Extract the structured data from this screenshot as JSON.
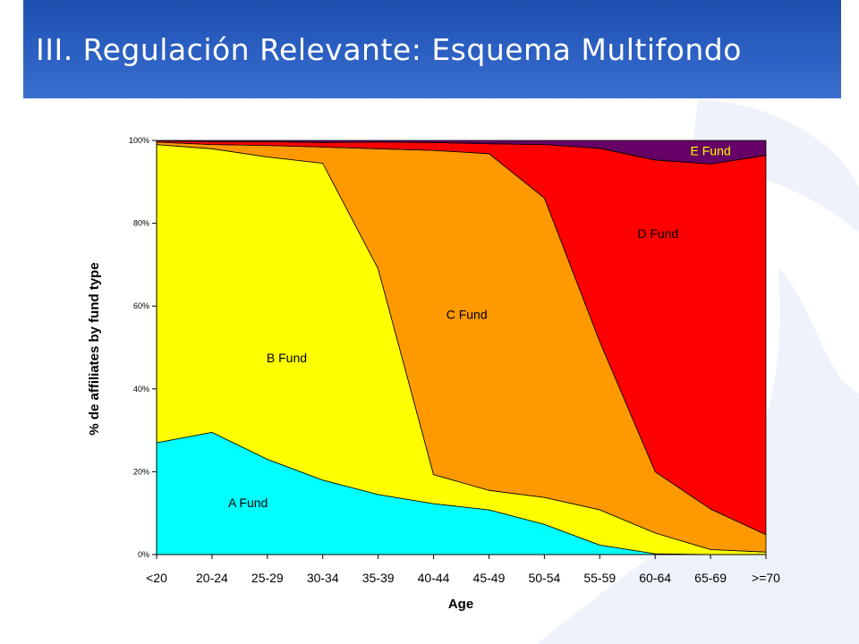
{
  "slide": {
    "title": "III. Regulación Relevante: Esquema Multifondo"
  },
  "colors": {
    "title_bar": "#2d62c4",
    "title_text": "#ffffff",
    "decoration": "#eef3fb"
  },
  "chart_data": {
    "type": "area",
    "stacked": true,
    "percent": true,
    "xlabel": "Age",
    "ylabel": "% de affiliates by fund type",
    "categories": [
      "<20",
      "20-24",
      "25-29",
      "30-34",
      "35-39",
      "40-44",
      "45-49",
      "50-54",
      "55-59",
      "60-64",
      "65-69",
      ">=70"
    ],
    "y_ticks": [
      "0%",
      "20%",
      "40%",
      "60%",
      "80%",
      "100%"
    ],
    "ylim": [
      0,
      100
    ],
    "grid": false,
    "series": [
      {
        "name": "A Fund",
        "color": "#00ffff",
        "values": [
          27,
          29.5,
          23,
          18,
          14.5,
          12.3,
          10.8,
          7.3,
          2.3,
          0.2,
          0,
          0
        ]
      },
      {
        "name": "B Fund",
        "color": "#ffff00",
        "values": [
          72,
          68.5,
          73,
          76.5,
          54.5,
          7,
          4.7,
          6.5,
          8.5,
          5,
          1.2,
          0.6
        ]
      },
      {
        "name": "C Fund",
        "color": "#ff9900",
        "values": [
          0.6,
          1,
          2.8,
          3.9,
          29,
          78.3,
          81.3,
          72.3,
          40.6,
          14.8,
          9.8,
          4.2
        ]
      },
      {
        "name": "D Fund",
        "color": "#ff0000",
        "values": [
          0.3,
          0.7,
          0.9,
          1.1,
          1.6,
          1.9,
          2.4,
          12.9,
          46.7,
          75.3,
          83.3,
          91.6
        ]
      },
      {
        "name": "E Fund",
        "color": "#660066",
        "values": [
          0.1,
          0.3,
          0.3,
          0.5,
          0.4,
          0.5,
          0.8,
          1,
          1.9,
          4.7,
          5.7,
          3.6
        ]
      }
    ],
    "label_positions": [
      {
        "series": "A Fund",
        "x_index": 1.65,
        "y": 12.5,
        "color": "#000000"
      },
      {
        "series": "B Fund",
        "x_index": 2.35,
        "y": 47.5,
        "color": "#000000"
      },
      {
        "series": "C Fund",
        "x_index": 5.6,
        "y": 58,
        "color": "#000000"
      },
      {
        "series": "D Fund",
        "x_index": 9.05,
        "y": 77.5,
        "color": "#000000"
      },
      {
        "series": "E Fund",
        "x_index": 10.0,
        "y": 97.5,
        "color": "#ffff00"
      }
    ]
  }
}
